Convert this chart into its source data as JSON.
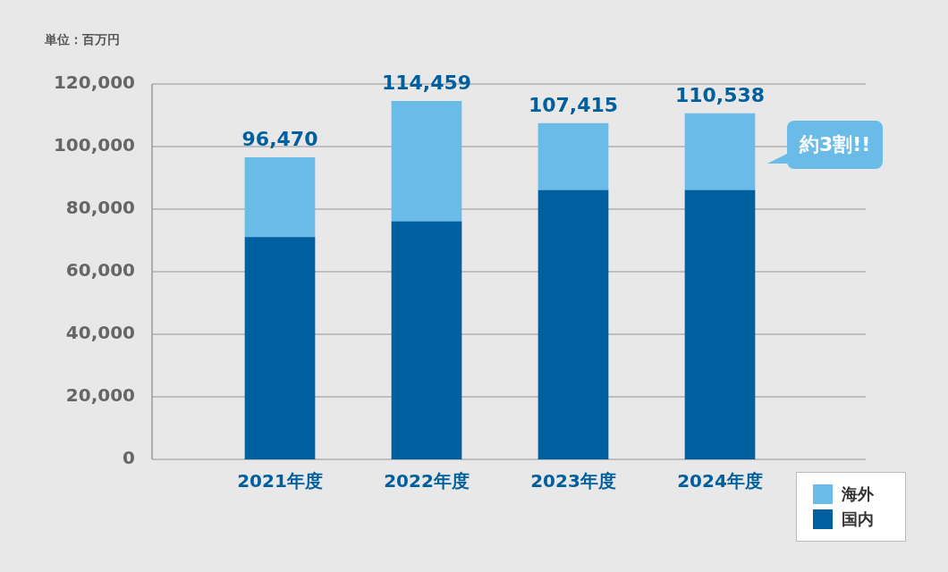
{
  "chart_data": {
    "type": "bar",
    "stacked": true,
    "categories": [
      "2021年度",
      "2022年度",
      "2023年度",
      "2024年度"
    ],
    "series": [
      {
        "name": "国内",
        "color": "#005f9e",
        "values": [
          71000,
          76000,
          86000,
          86000
        ]
      },
      {
        "name": "海外",
        "color": "#6bbbe9",
        "values": [
          25470,
          38459,
          21415,
          24538
        ]
      }
    ],
    "totals": [
      "96,470",
      "114,459",
      "107,415",
      "110,538"
    ],
    "ylim": [
      0,
      120000
    ],
    "yticks": [
      0,
      {
        "value": 20000,
        "label": "20,000"
      },
      {
        "value": 40000,
        "label": "40,000"
      },
      {
        "value": 60000,
        "label": "60,000"
      },
      {
        "value": 80000,
        "label": "80,000"
      },
      {
        "value": 100000,
        "label": "100,000"
      },
      {
        "value": 120000,
        "label": "120,000"
      }
    ],
    "grid": "y",
    "legend": "bottom right",
    "annotations": [
      "単位：百万円",
      "約3割!!"
    ]
  }
}
